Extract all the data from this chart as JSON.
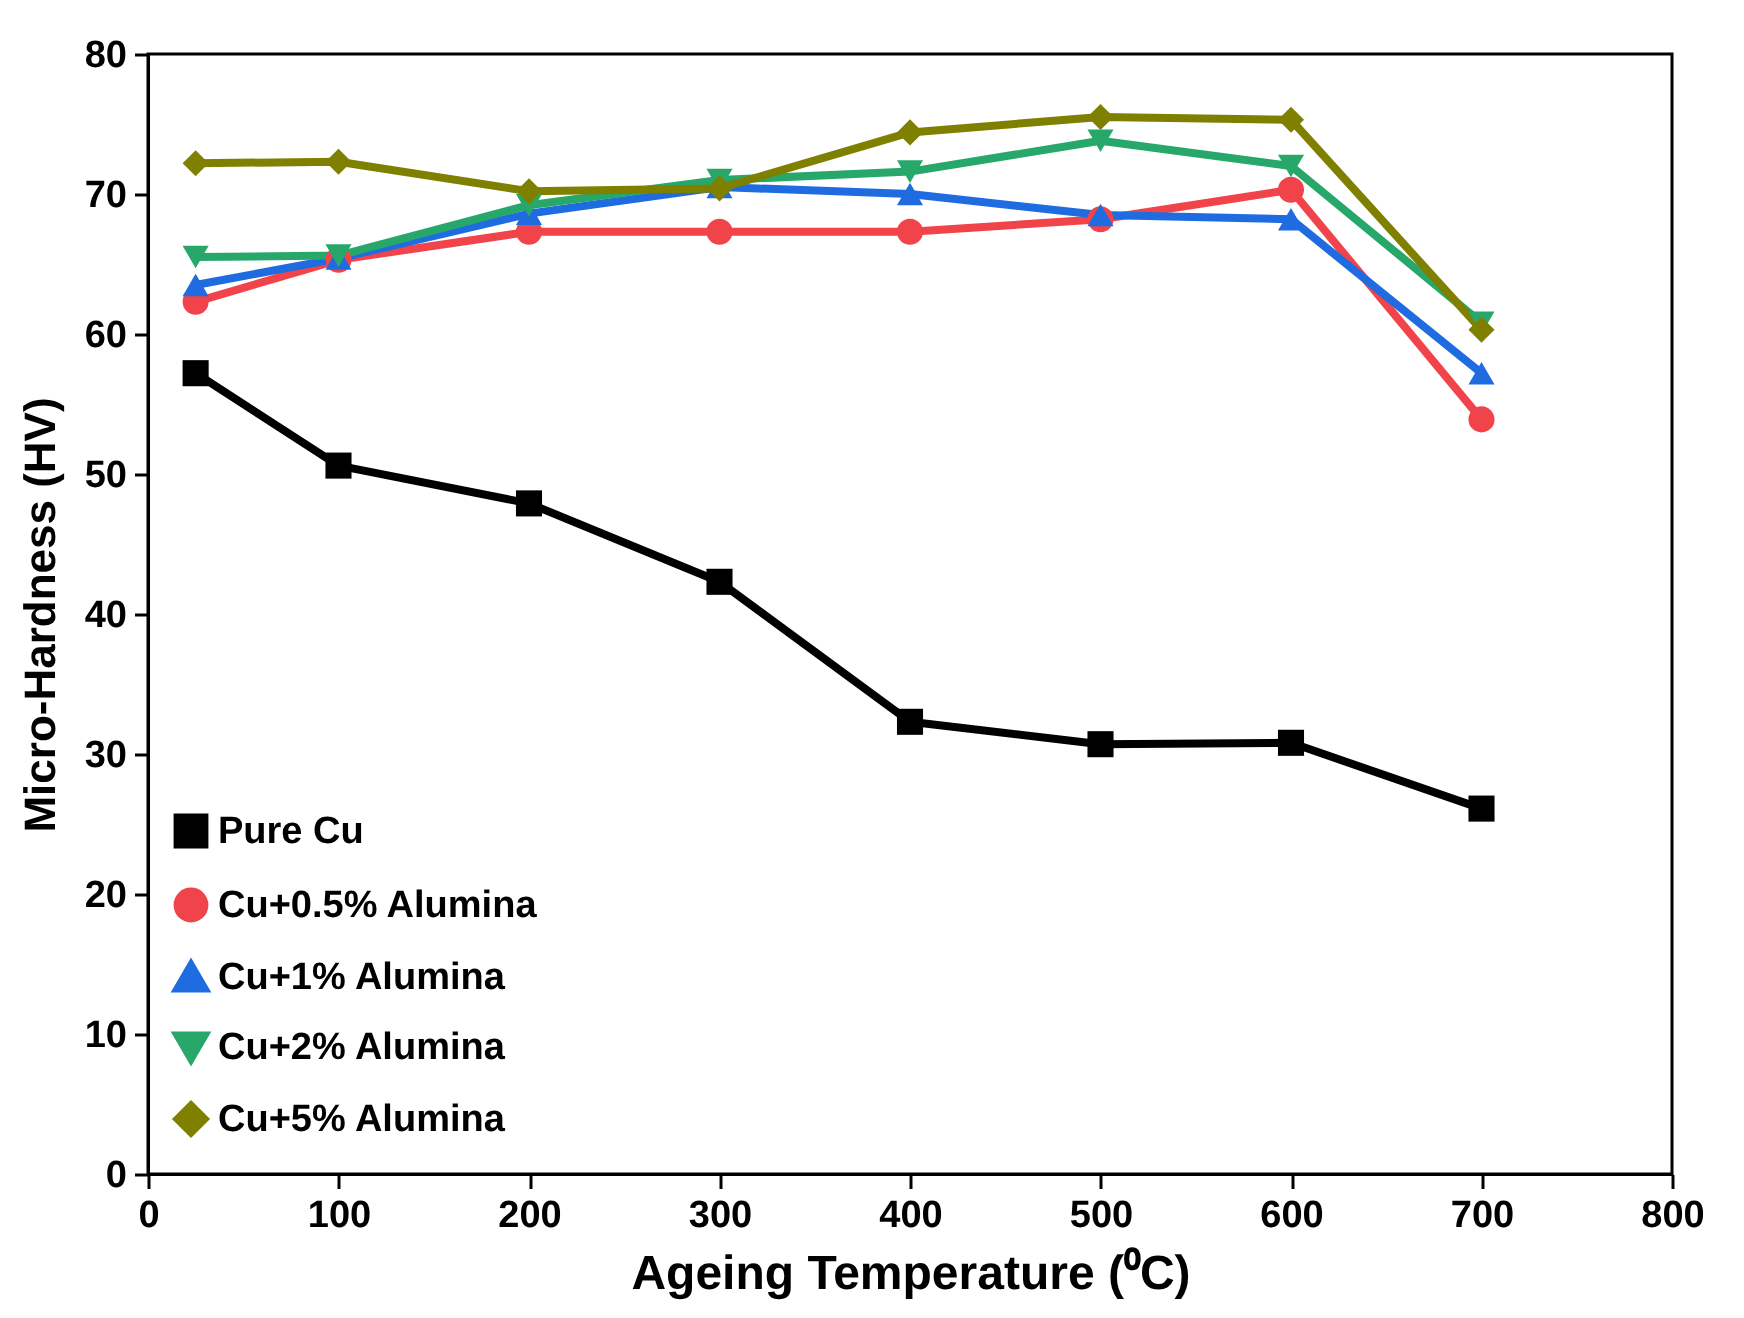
{
  "chart_data": {
    "type": "line",
    "xlabel": "Ageing Temperature (⁰C)",
    "ylabel": "Micro-Hardness (HV)",
    "x": [
      25,
      100,
      200,
      300,
      400,
      500,
      600,
      700
    ],
    "xlim": [
      0,
      800
    ],
    "xticks": [
      0,
      100,
      200,
      300,
      400,
      500,
      600,
      700,
      800
    ],
    "ylim": [
      0,
      80
    ],
    "yticks": [
      0,
      10,
      20,
      30,
      40,
      50,
      60,
      70,
      80
    ],
    "legend": "bottom left",
    "grid": false,
    "line_style": "solid",
    "series": [
      {
        "name": "Pure Cu",
        "color": "#000000",
        "marker": "square",
        "values": [
          57.2,
          50.6,
          47.9,
          42.3,
          32.3,
          30.7,
          30.8,
          26.1
        ]
      },
      {
        "name": "Cu+0.5% Alumina",
        "color": "#f0434a",
        "marker": "circle",
        "values": [
          62.3,
          65.3,
          67.3,
          67.3,
          67.3,
          68.2,
          70.3,
          53.9
        ]
      },
      {
        "name": "Cu+1% Alumina",
        "color": "#1f6be0",
        "marker": "triangle",
        "values": [
          63.5,
          65.4,
          68.6,
          70.5,
          70.0,
          68.5,
          68.2,
          57.2
        ]
      },
      {
        "name": "Cu+2% Alumina",
        "color": "#27a86a",
        "marker": "triangle-down",
        "values": [
          65.5,
          65.6,
          69.2,
          71.0,
          71.6,
          73.8,
          72.0,
          60.8
        ]
      },
      {
        "name": "Cu+5% Alumina",
        "color": "#7f7f00",
        "marker": "diamond",
        "values": [
          72.2,
          72.3,
          70.2,
          70.4,
          74.4,
          75.5,
          75.3,
          60.3
        ]
      }
    ]
  }
}
